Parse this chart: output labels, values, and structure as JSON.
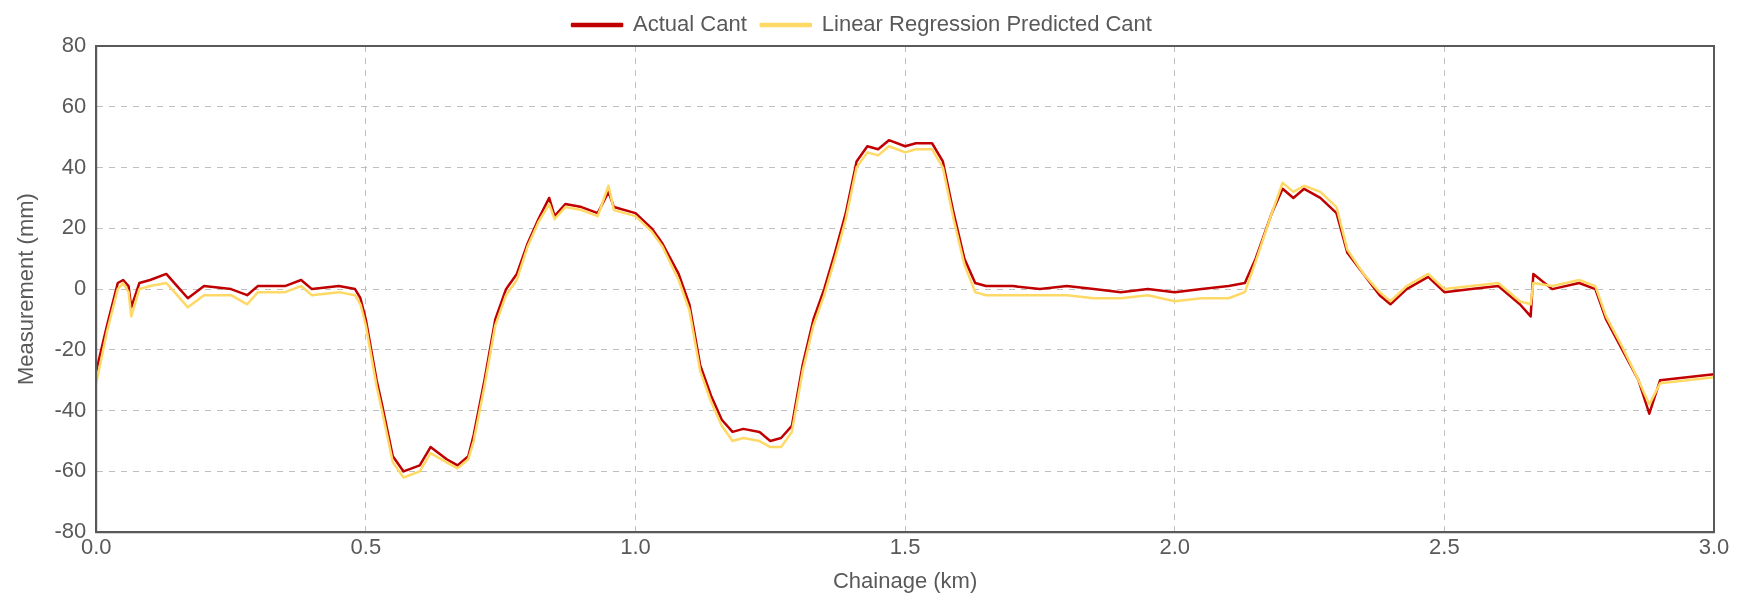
{
  "chart_data": {
    "type": "line",
    "xlabel": "Chainage (km)",
    "ylabel": "Measurement (mm)",
    "xlim": [
      0,
      3
    ],
    "ylim": [
      -80,
      80
    ],
    "xticks": [
      {
        "value": 0,
        "label": "0.0"
      },
      {
        "value": 0.5,
        "label": "0.5"
      },
      {
        "value": 1,
        "label": "1.0"
      },
      {
        "value": 1.5,
        "label": "1.5"
      },
      {
        "value": 2,
        "label": "2.0"
      },
      {
        "value": 2.5,
        "label": "2.5"
      },
      {
        "value": 3,
        "label": "3.0"
      }
    ],
    "yticks": [
      -80,
      -60,
      -40,
      -20,
      0,
      20,
      40,
      60,
      80
    ],
    "grid": true,
    "legend": "top",
    "marker": "none",
    "line_style": "solid",
    "series": [
      {
        "name": "Actual Cant",
        "color": "#c00000",
        "x": [
          0,
          0.02,
          0.04,
          0.05,
          0.06,
          0.065,
          0.08,
          0.1,
          0.13,
          0.15,
          0.17,
          0.2,
          0.25,
          0.28,
          0.3,
          0.35,
          0.38,
          0.4,
          0.45,
          0.48,
          0.49,
          0.5,
          0.52,
          0.53,
          0.55,
          0.57,
          0.6,
          0.62,
          0.65,
          0.67,
          0.69,
          0.7,
          0.72,
          0.74,
          0.76,
          0.78,
          0.8,
          0.82,
          0.84,
          0.85,
          0.87,
          0.9,
          0.93,
          0.95,
          0.96,
          1,
          1.03,
          1.05,
          1.08,
          1.1,
          1.12,
          1.14,
          1.16,
          1.18,
          1.2,
          1.23,
          1.25,
          1.27,
          1.29,
          1.31,
          1.33,
          1.35,
          1.37,
          1.39,
          1.41,
          1.43,
          1.45,
          1.47,
          1.5,
          1.52,
          1.55,
          1.57,
          1.59,
          1.61,
          1.63,
          1.65,
          1.7,
          1.75,
          1.8,
          1.85,
          1.9,
          1.95,
          2,
          2.05,
          2.1,
          2.13,
          2.15,
          2.18,
          2.2,
          2.22,
          2.24,
          2.27,
          2.3,
          2.32,
          2.35,
          2.38,
          2.4,
          2.43,
          2.47,
          2.5,
          2.55,
          2.6,
          2.64,
          2.66,
          2.665,
          2.7,
          2.75,
          2.78,
          2.8,
          2.83,
          2.86,
          2.88,
          2.9,
          2.95,
          3
        ],
        "values": [
          -27,
          -12,
          2,
          3,
          1,
          -6,
          2,
          3,
          5,
          1,
          -3,
          1,
          0,
          -2,
          1,
          1,
          3,
          0,
          1,
          0,
          -3,
          -10,
          -30,
          -38,
          -55,
          -60,
          -58,
          -52,
          -56,
          -58,
          -55,
          -48,
          -30,
          -10,
          0,
          5,
          15,
          23,
          30,
          24,
          28,
          27,
          25,
          32,
          27,
          25,
          20,
          15,
          5,
          -5,
          -25,
          -35,
          -43,
          -47,
          -46,
          -47,
          -50,
          -49,
          -45,
          -25,
          -10,
          0,
          12,
          25,
          42,
          47,
          46,
          49,
          47,
          48,
          48,
          42,
          25,
          10,
          2,
          1,
          1,
          0,
          1,
          0,
          -1,
          0,
          -1,
          0,
          1,
          2,
          10,
          25,
          33,
          30,
          33,
          30,
          25,
          12,
          5,
          -2,
          -5,
          0,
          4,
          -1,
          0,
          1,
          -5,
          -9,
          5,
          0,
          2,
          0,
          -10,
          -20,
          -30,
          -41,
          -30,
          -29,
          -28
        ]
      },
      {
        "name": "Linear Regression Predicted Cant",
        "color": "#ffd966",
        "x": [
          0,
          0.02,
          0.04,
          0.05,
          0.06,
          0.065,
          0.08,
          0.1,
          0.13,
          0.15,
          0.17,
          0.2,
          0.25,
          0.28,
          0.3,
          0.35,
          0.38,
          0.4,
          0.45,
          0.48,
          0.49,
          0.5,
          0.52,
          0.53,
          0.55,
          0.57,
          0.6,
          0.62,
          0.65,
          0.67,
          0.69,
          0.7,
          0.72,
          0.74,
          0.76,
          0.78,
          0.8,
          0.82,
          0.84,
          0.85,
          0.87,
          0.9,
          0.93,
          0.95,
          0.96,
          1,
          1.03,
          1.05,
          1.08,
          1.1,
          1.12,
          1.14,
          1.16,
          1.18,
          1.2,
          1.23,
          1.25,
          1.27,
          1.29,
          1.31,
          1.33,
          1.35,
          1.37,
          1.39,
          1.41,
          1.43,
          1.45,
          1.47,
          1.5,
          1.52,
          1.55,
          1.57,
          1.59,
          1.61,
          1.63,
          1.65,
          1.7,
          1.75,
          1.8,
          1.85,
          1.9,
          1.95,
          2,
          2.05,
          2.1,
          2.13,
          2.15,
          2.18,
          2.2,
          2.22,
          2.24,
          2.27,
          2.3,
          2.32,
          2.35,
          2.38,
          2.4,
          2.43,
          2.47,
          2.5,
          2.55,
          2.6,
          2.64,
          2.66,
          2.665,
          2.7,
          2.75,
          2.78,
          2.8,
          2.83,
          2.86,
          2.88,
          2.9,
          2.95,
          3
        ],
        "values": [
          -31,
          -14,
          0,
          2,
          -1,
          -9,
          0,
          1,
          2,
          -2,
          -6,
          -2,
          -2,
          -5,
          -1,
          -1,
          1,
          -2,
          -1,
          -2,
          -5,
          -12,
          -32,
          -40,
          -57,
          -62,
          -60,
          -54,
          -57,
          -59,
          -56,
          -50,
          -32,
          -12,
          -2,
          3,
          14,
          22,
          28,
          23,
          27,
          26,
          24,
          34,
          26,
          24,
          19,
          14,
          3,
          -7,
          -27,
          -37,
          -45,
          -50,
          -49,
          -50,
          -52,
          -52,
          -47,
          -27,
          -12,
          -2,
          10,
          23,
          40,
          45,
          44,
          47,
          45,
          46,
          46,
          40,
          23,
          8,
          -1,
          -2,
          -2,
          -2,
          -2,
          -3,
          -3,
          -2,
          -4,
          -3,
          -3,
          -1,
          9,
          25,
          35,
          32,
          34,
          32,
          27,
          13,
          5,
          -1,
          -4,
          1,
          5,
          0,
          1,
          2,
          -4,
          -5,
          2,
          1,
          3,
          1,
          -9,
          -19,
          -30,
          -38,
          -31,
          -30,
          -29
        ]
      }
    ]
  }
}
